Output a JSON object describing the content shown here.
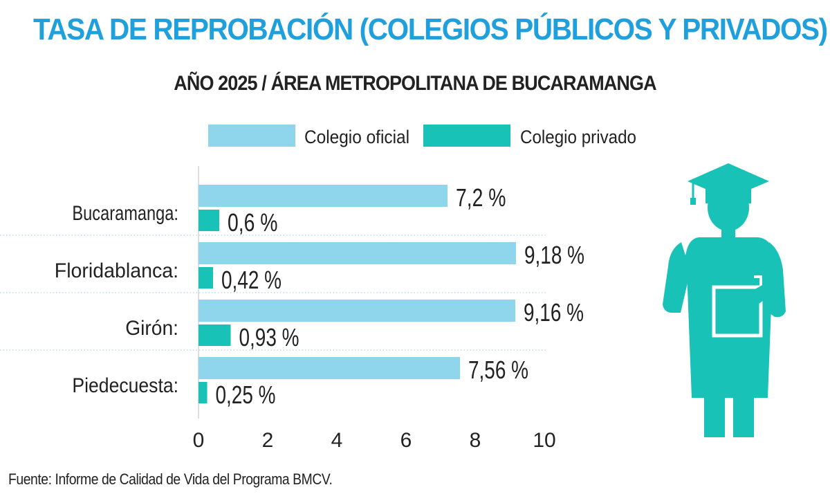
{
  "title": "TASA DE REPROBACIÓN (COLEGIOS PÚBLICOS Y PRIVADOS)",
  "subtitle": "AÑO 2025 / ÁREA METROPOLITANA DE BUCARAMANGA",
  "source": "Fuente: Informe de Calidad de Vida del  Programa BMCV.",
  "colors": {
    "title": "#1fa0dc",
    "oficial": "#8fd6ec",
    "privado": "#19c2b7",
    "icon": "#19c2b7",
    "text": "#222222"
  },
  "icon": "graduate-student-icon",
  "chart_data": {
    "type": "bar",
    "orientation": "horizontal",
    "categories": [
      "Bucaramanga:",
      "Floridablanca:",
      "Girón:",
      "Piedecuesta:"
    ],
    "series": [
      {
        "name": "Colegio oficial",
        "values": [
          7.2,
          9.18,
          9.16,
          7.56
        ],
        "labels": [
          "7,2 %",
          "9,18 %",
          "9,16 %",
          "7,56 %"
        ]
      },
      {
        "name": "Colegio privado",
        "values": [
          0.6,
          0.42,
          0.93,
          0.25
        ],
        "labels": [
          "0,6 %",
          "0,42 %",
          "0,93 %",
          "0,25 %"
        ]
      }
    ],
    "xlim": [
      0,
      10
    ],
    "xticks": [
      0,
      2,
      4,
      6,
      8,
      10
    ],
    "legend": "top",
    "grid": "dotted-separators"
  }
}
